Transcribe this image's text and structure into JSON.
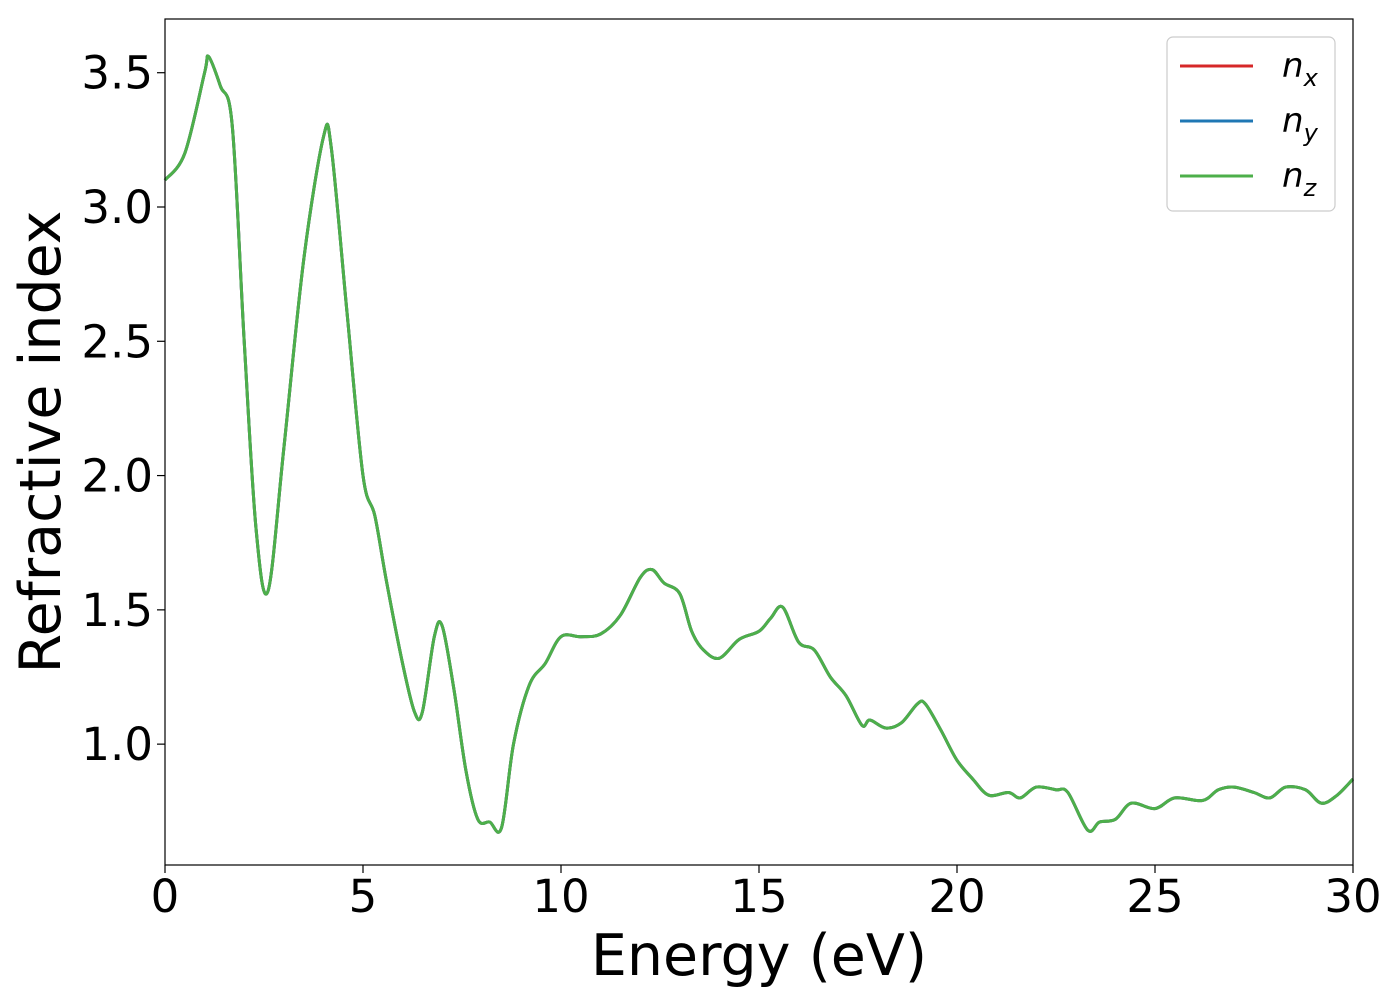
{
  "chart_data": {
    "type": "line",
    "xlabel": "Energy (eV)",
    "ylabel": "Refractive index",
    "xlim": [
      0,
      30
    ],
    "ylim": [
      0.55,
      3.7
    ],
    "x_ticks": [
      0,
      5,
      10,
      15,
      20,
      25,
      30
    ],
    "x_tick_labels": [
      "0",
      "5",
      "10",
      "15",
      "20",
      "25",
      "30"
    ],
    "y_ticks": [
      1.0,
      1.5,
      2.0,
      2.5,
      3.0,
      3.5
    ],
    "y_tick_labels": [
      "1.0",
      "1.5",
      "2.0",
      "2.5",
      "3.0",
      "3.5"
    ],
    "grid": false,
    "legend_position": "top-right",
    "series": [
      {
        "name": "n",
        "subscript": "x",
        "color": "#d62728"
      },
      {
        "name": "n",
        "subscript": "y",
        "color": "#1f77b4"
      },
      {
        "name": "n",
        "subscript": "z",
        "color": "#4daf4a"
      }
    ],
    "x": [
      0,
      0.5,
      1.0,
      1.1,
      1.4,
      1.7,
      2.0,
      2.3,
      2.6,
      3.0,
      3.5,
      4.0,
      4.2,
      4.6,
      5.0,
      5.3,
      5.6,
      6.0,
      6.3,
      6.5,
      6.8,
      7.0,
      7.3,
      7.6,
      7.9,
      8.2,
      8.5,
      8.8,
      9.2,
      9.6,
      10.0,
      10.5,
      11.0,
      11.5,
      12.0,
      12.3,
      12.6,
      13.0,
      13.3,
      13.6,
      14.0,
      14.5,
      15.0,
      15.3,
      15.6,
      16.0,
      16.4,
      16.8,
      17.2,
      17.6,
      17.8,
      18.2,
      18.6,
      19.0,
      19.2,
      19.6,
      20.0,
      20.4,
      20.8,
      21.3,
      21.6,
      22.0,
      22.5,
      22.8,
      23.3,
      23.6,
      24.0,
      24.4,
      25.0,
      25.5,
      26.2,
      26.6,
      27.0,
      27.5,
      27.9,
      28.3,
      28.8,
      29.2,
      29.6,
      30.0
    ],
    "y": [
      3.1,
      3.2,
      3.5,
      3.56,
      3.45,
      3.3,
      2.5,
      1.8,
      1.57,
      2.1,
      2.8,
      3.26,
      3.22,
      2.6,
      2.0,
      1.85,
      1.6,
      1.3,
      1.12,
      1.12,
      1.4,
      1.44,
      1.2,
      0.9,
      0.72,
      0.71,
      0.69,
      1.0,
      1.22,
      1.3,
      1.4,
      1.4,
      1.41,
      1.48,
      1.62,
      1.65,
      1.6,
      1.56,
      1.42,
      1.35,
      1.32,
      1.39,
      1.42,
      1.47,
      1.51,
      1.38,
      1.35,
      1.25,
      1.18,
      1.07,
      1.09,
      1.06,
      1.08,
      1.15,
      1.15,
      1.05,
      0.94,
      0.87,
      0.81,
      0.82,
      0.8,
      0.84,
      0.83,
      0.82,
      0.68,
      0.71,
      0.72,
      0.78,
      0.76,
      0.8,
      0.79,
      0.83,
      0.84,
      0.82,
      0.8,
      0.84,
      0.83,
      0.78,
      0.81,
      0.87
    ]
  }
}
